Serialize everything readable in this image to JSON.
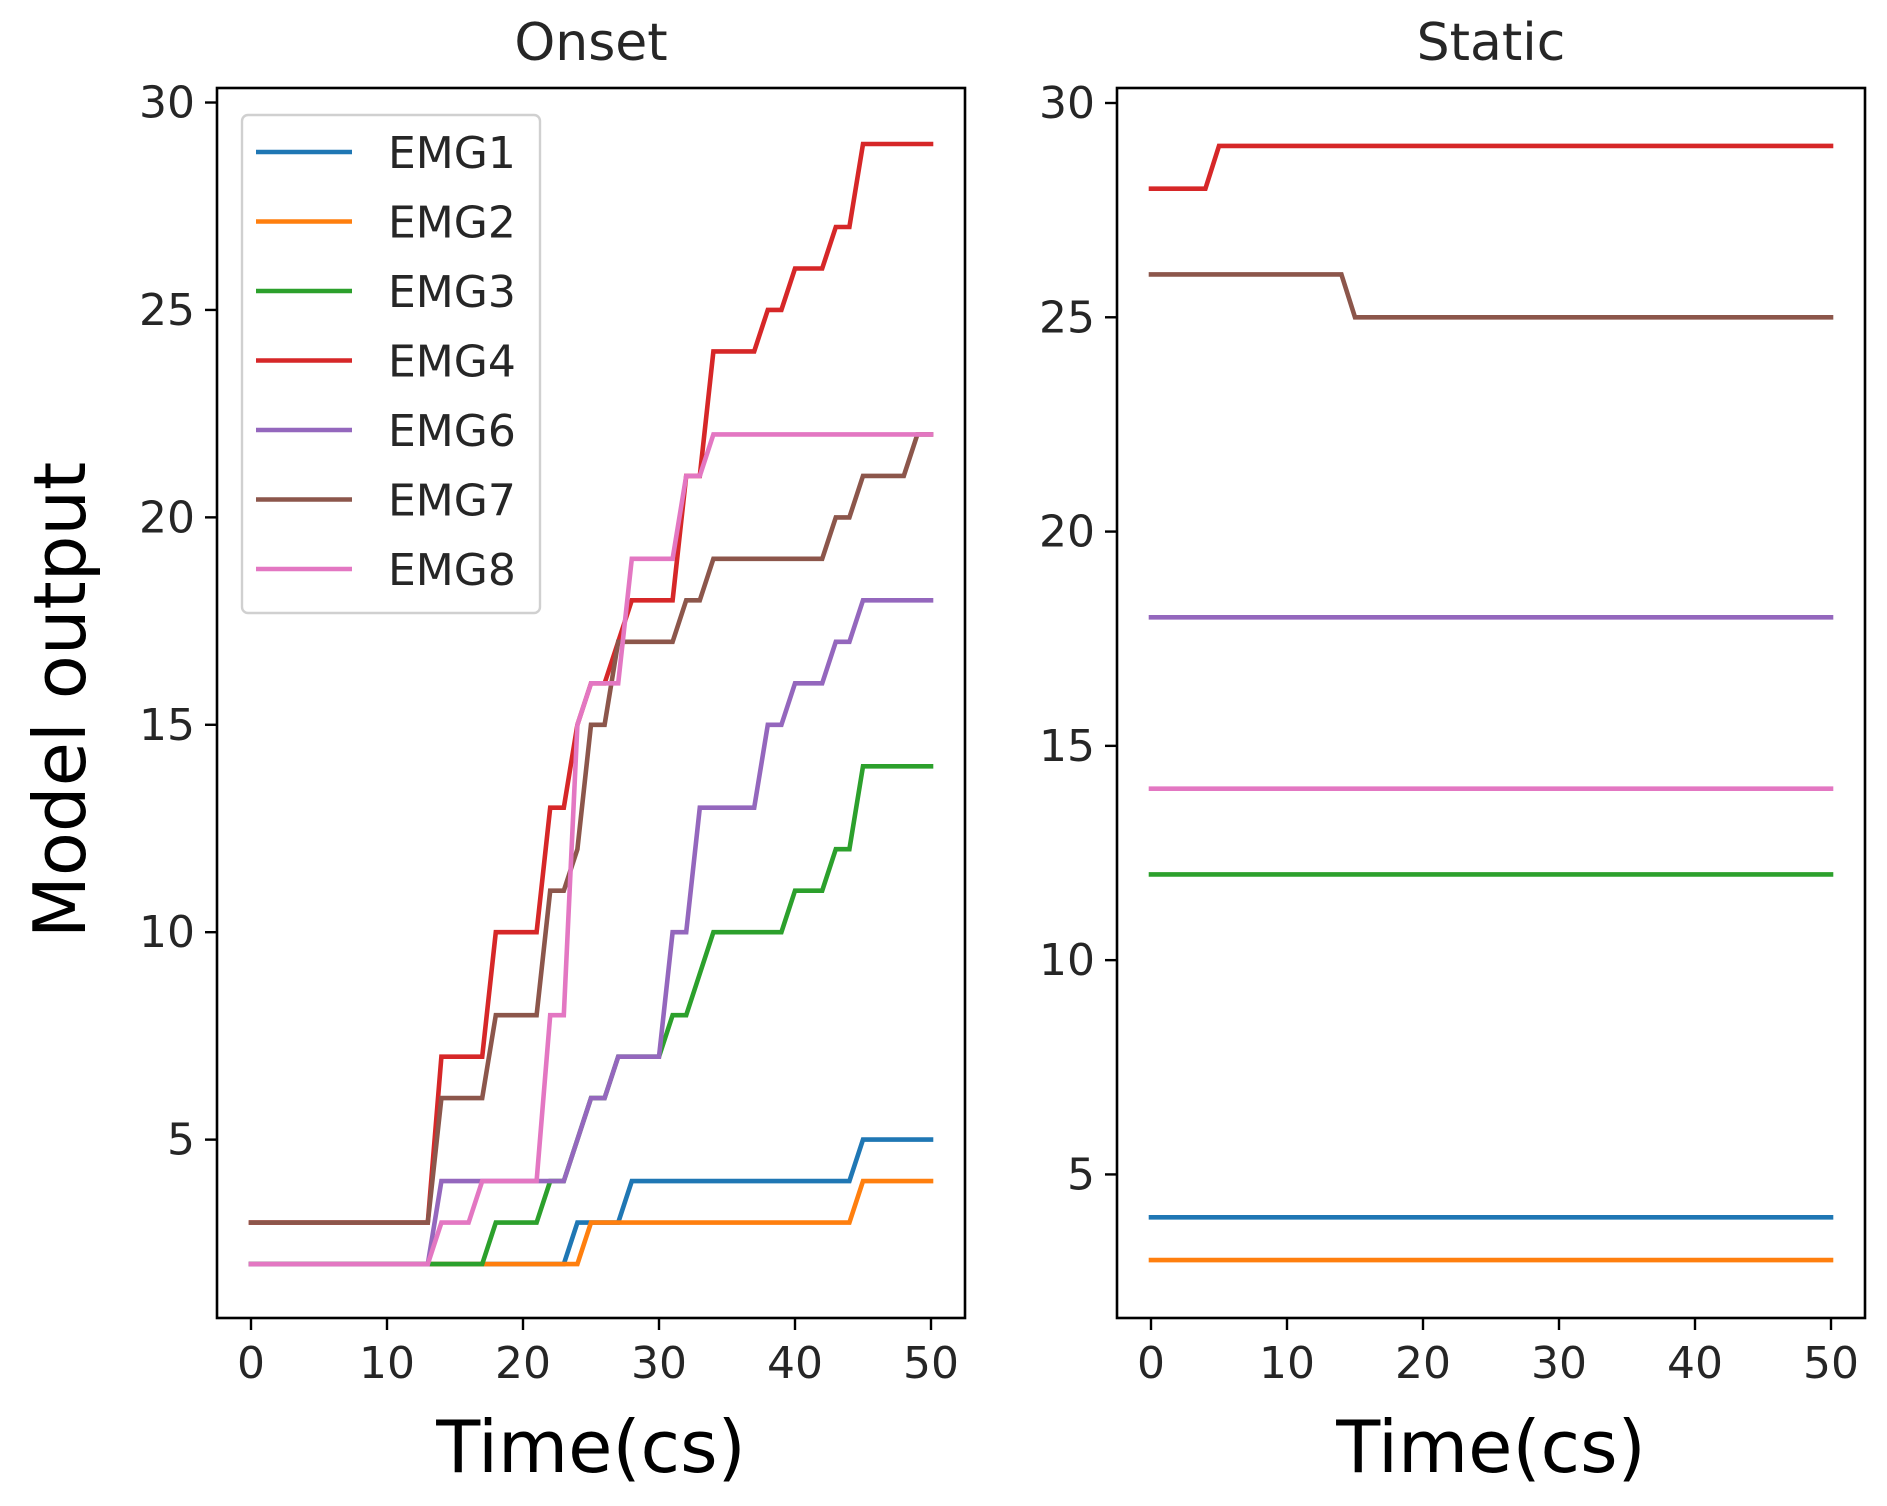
{
  "figure": {
    "ylabel": "Model output"
  },
  "chart_data": [
    {
      "type": "line",
      "title": "Onset",
      "xlabel": "Time(cs)",
      "ylabel": "Model output",
      "xlim": [
        -2.5,
        52.5
      ],
      "ylim": [
        0.7,
        30.35
      ],
      "xticks": [
        0,
        10,
        20,
        30,
        40,
        50
      ],
      "yticks": [
        5,
        10,
        15,
        20,
        25,
        30
      ],
      "legend": "top-left",
      "series": [
        {
          "name": "EMG1",
          "color": "#1f77b4",
          "x": [
            0,
            23,
            24,
            27,
            28,
            44,
            45,
            50
          ],
          "y": [
            2,
            2,
            3,
            3,
            4,
            4,
            5,
            5
          ]
        },
        {
          "name": "EMG2",
          "color": "#ff7f0e",
          "x": [
            0,
            24,
            25,
            44,
            45,
            50
          ],
          "y": [
            2,
            2,
            3,
            3,
            4,
            4
          ]
        },
        {
          "name": "EMG3",
          "color": "#2ca02c",
          "x": [
            0,
            17,
            18,
            21,
            22,
            23,
            24,
            25,
            26,
            27,
            28,
            30,
            31,
            32,
            33,
            34,
            39,
            40,
            41,
            42,
            43,
            44,
            45,
            50
          ],
          "y": [
            2,
            2,
            3,
            3,
            4,
            4,
            5,
            6,
            6,
            7,
            7,
            7,
            8,
            8,
            9,
            10,
            10,
            11,
            11,
            11,
            12,
            12,
            14,
            14
          ]
        },
        {
          "name": "EMG4",
          "color": "#d62728",
          "x": [
            0,
            13,
            14,
            17,
            18,
            21,
            22,
            23,
            24,
            25,
            26,
            27,
            28,
            31,
            32,
            33,
            34,
            37,
            38,
            39,
            40,
            42,
            43,
            44,
            45,
            50
          ],
          "y": [
            3,
            3,
            7,
            7,
            10,
            10,
            13,
            13,
            15,
            16,
            16,
            17,
            18,
            18,
            21,
            21,
            24,
            24,
            25,
            25,
            26,
            26,
            27,
            27,
            29,
            29
          ]
        },
        {
          "name": "EMG6",
          "color": "#9467bd",
          "x": [
            0,
            13,
            14,
            23,
            24,
            25,
            26,
            27,
            28,
            30,
            31,
            32,
            33,
            34,
            37,
            38,
            39,
            40,
            42,
            43,
            44,
            45,
            50
          ],
          "y": [
            2,
            2,
            4,
            4,
            5,
            6,
            6,
            7,
            7,
            7,
            10,
            10,
            13,
            13,
            13,
            15,
            15,
            16,
            16,
            17,
            17,
            18,
            18
          ]
        },
        {
          "name": "EMG7",
          "color": "#8c564b",
          "x": [
            0,
            13,
            14,
            17,
            18,
            21,
            22,
            23,
            24,
            25,
            26,
            27,
            28,
            31,
            32,
            33,
            34,
            42,
            43,
            44,
            45,
            48,
            49,
            50
          ],
          "y": [
            3,
            3,
            6,
            6,
            8,
            8,
            11,
            11,
            12,
            15,
            15,
            17,
            17,
            17,
            18,
            18,
            19,
            19,
            20,
            20,
            21,
            21,
            22,
            22
          ]
        },
        {
          "name": "EMG8",
          "color": "#e377c2",
          "x": [
            0,
            13,
            14,
            16,
            17,
            21,
            22,
            23,
            24,
            25,
            27,
            28,
            31,
            32,
            33,
            34,
            50
          ],
          "y": [
            2,
            2,
            3,
            3,
            4,
            4,
            8,
            8,
            15,
            16,
            16,
            19,
            19,
            21,
            21,
            22,
            22
          ]
        }
      ]
    },
    {
      "type": "line",
      "title": "Static",
      "xlabel": "Time(cs)",
      "ylabel": "",
      "xlim": [
        -2.5,
        52.5
      ],
      "ylim": [
        1.65,
        30.35
      ],
      "xticks": [
        0,
        10,
        20,
        30,
        40,
        50
      ],
      "yticks": [
        5,
        10,
        15,
        20,
        25,
        30
      ],
      "legend": "none",
      "series": [
        {
          "name": "EMG1",
          "color": "#1f77b4",
          "x": [
            0,
            50
          ],
          "y": [
            4,
            4
          ]
        },
        {
          "name": "EMG2",
          "color": "#ff7f0e",
          "x": [
            0,
            50
          ],
          "y": [
            3,
            3
          ]
        },
        {
          "name": "EMG3",
          "color": "#2ca02c",
          "x": [
            0,
            50
          ],
          "y": [
            12,
            12
          ]
        },
        {
          "name": "EMG4",
          "color": "#d62728",
          "x": [
            0,
            4,
            5,
            50
          ],
          "y": [
            28,
            28,
            29,
            29
          ]
        },
        {
          "name": "EMG6",
          "color": "#9467bd",
          "x": [
            0,
            50
          ],
          "y": [
            18,
            18
          ]
        },
        {
          "name": "EMG7",
          "color": "#8c564b",
          "x": [
            0,
            14,
            15,
            50
          ],
          "y": [
            26,
            26,
            25,
            25
          ]
        },
        {
          "name": "EMG8",
          "color": "#e377c2",
          "x": [
            0,
            50
          ],
          "y": [
            14,
            14
          ]
        }
      ]
    }
  ]
}
